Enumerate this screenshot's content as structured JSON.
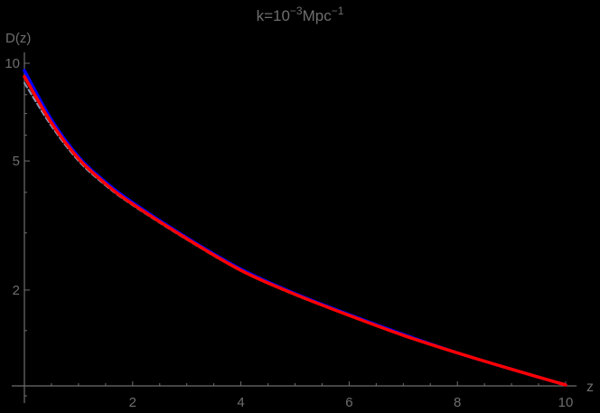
{
  "chart_data": {
    "type": "line",
    "title": "k=10^-3 Mpc^-1",
    "title_parts": {
      "base": "k=10",
      "exp1": "−3",
      "unit": "Mpc",
      "exp2": "−1"
    },
    "xlabel": "z",
    "ylabel": "D(z)",
    "xlim": [
      0,
      10
    ],
    "ylim": [
      1,
      10
    ],
    "yscale": "log",
    "grid": false,
    "legend": null,
    "x_ticks": [
      2,
      4,
      6,
      8,
      10
    ],
    "x_tick_labels": [
      "2",
      "4",
      "6",
      "8",
      "10"
    ],
    "y_ticks": [
      2,
      5,
      10
    ],
    "y_tick_labels": [
      "2",
      "5",
      "10"
    ],
    "x": [
      0,
      0.5,
      1,
      1.5,
      2,
      3,
      4,
      5,
      6,
      7,
      8,
      9,
      10
    ],
    "series": [
      {
        "name": "blue",
        "color": "#0000ff",
        "style": "solid",
        "values": [
          9.5,
          6.7,
          5.15,
          4.3,
          3.72,
          2.9,
          2.32,
          1.95,
          1.68,
          1.46,
          1.28,
          1.14,
          1.02
        ]
      },
      {
        "name": "red",
        "color": "#ff0000",
        "style": "solid",
        "values": [
          9.1,
          6.55,
          5.08,
          4.25,
          3.68,
          2.88,
          2.3,
          1.94,
          1.67,
          1.45,
          1.28,
          1.14,
          1.02
        ]
      },
      {
        "name": "gray-dashed",
        "color": "#8a96b4",
        "style": "dashed",
        "values": [
          8.7,
          6.4,
          5.0,
          4.2,
          3.65,
          2.86,
          2.29,
          1.93,
          1.67,
          1.45,
          1.28,
          1.14,
          1.02
        ]
      }
    ]
  },
  "colors": {
    "background": "#000000",
    "axis": "#6e6e6e"
  }
}
